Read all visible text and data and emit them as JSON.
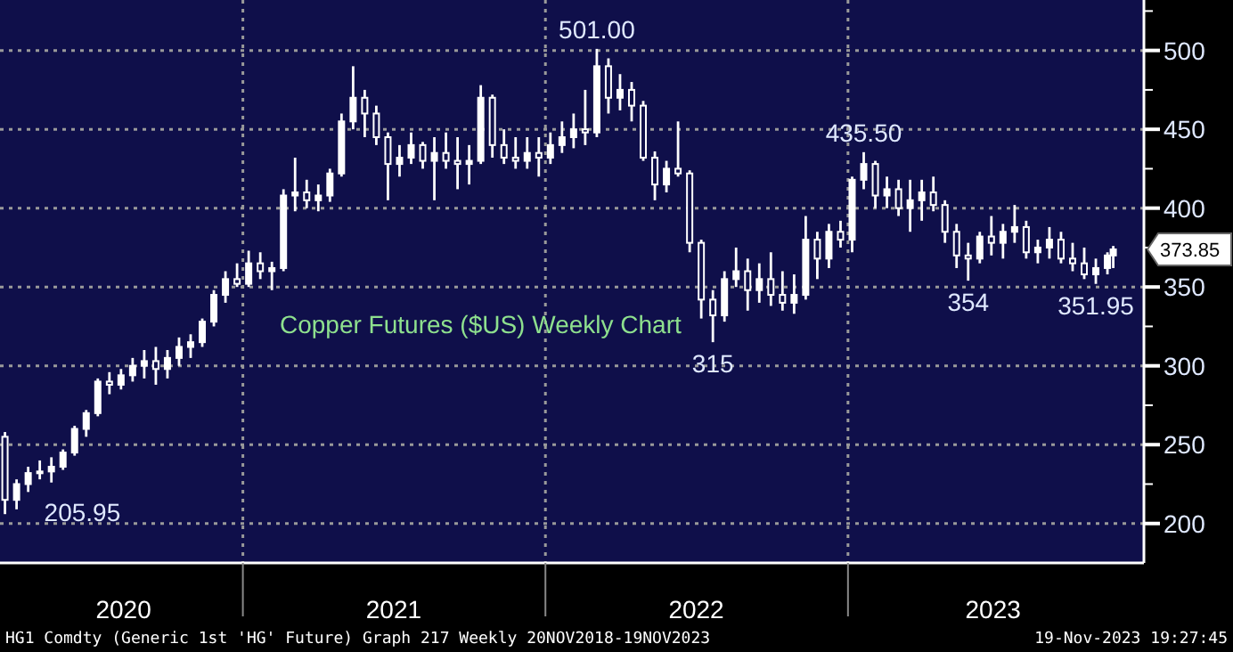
{
  "chart_data": {
    "type": "candlestick",
    "title": "Copper Futures ($US) Weekly Chart",
    "x": [
      "2020-03-20",
      "2020-04-03",
      "2020-04-17",
      "2020-05-01",
      "2020-05-15",
      "2020-05-29",
      "2020-06-12",
      "2020-06-26",
      "2020-07-10",
      "2020-07-24",
      "2020-08-07",
      "2020-08-21",
      "2020-09-04",
      "2020-09-18",
      "2020-10-02",
      "2020-10-16",
      "2020-10-30",
      "2020-11-13",
      "2020-11-27",
      "2020-12-11",
      "2020-12-25",
      "2021-01-08",
      "2021-01-22",
      "2021-02-05",
      "2021-02-19",
      "2021-03-05",
      "2021-03-19",
      "2021-04-02",
      "2021-04-16",
      "2021-04-30",
      "2021-05-14",
      "2021-05-28",
      "2021-06-11",
      "2021-06-25",
      "2021-07-09",
      "2021-07-23",
      "2021-08-06",
      "2021-08-20",
      "2021-09-03",
      "2021-09-17",
      "2021-10-01",
      "2021-10-15",
      "2021-10-29",
      "2021-11-12",
      "2021-11-26",
      "2021-12-10",
      "2021-12-24",
      "2022-01-07",
      "2022-01-21",
      "2022-02-04",
      "2022-02-18",
      "2022-03-04",
      "2022-03-18",
      "2022-04-01",
      "2022-04-15",
      "2022-04-29",
      "2022-05-13",
      "2022-05-27",
      "2022-06-10",
      "2022-06-24",
      "2022-07-08",
      "2022-07-22",
      "2022-08-05",
      "2022-08-19",
      "2022-09-02",
      "2022-09-16",
      "2022-09-30",
      "2022-10-14",
      "2022-10-28",
      "2022-11-11",
      "2022-11-25",
      "2022-12-09",
      "2022-12-23",
      "2023-01-06",
      "2023-01-20",
      "2023-02-03",
      "2023-02-17",
      "2023-03-03",
      "2023-03-17",
      "2023-03-31",
      "2023-04-14",
      "2023-04-28",
      "2023-05-12",
      "2023-05-26",
      "2023-06-09",
      "2023-06-23",
      "2023-07-07",
      "2023-07-21",
      "2023-08-04",
      "2023-08-18",
      "2023-09-01",
      "2023-09-15",
      "2023-09-29",
      "2023-10-13",
      "2023-10-27",
      "2023-11-10",
      "2023-11-17"
    ],
    "series": [
      {
        "color": "#ffffff",
        "ohlc": [
          [
            255,
            258,
            205.95,
            215
          ],
          [
            215,
            228,
            209,
            225
          ],
          [
            225,
            236,
            220,
            232
          ],
          [
            232,
            240,
            228,
            233
          ],
          [
            233,
            242,
            226,
            236
          ],
          [
            236,
            247,
            234,
            245
          ],
          [
            245,
            262,
            243,
            260
          ],
          [
            260,
            272,
            255,
            270
          ],
          [
            270,
            292,
            268,
            290
          ],
          [
            290,
            296,
            282,
            288
          ],
          [
            288,
            298,
            285,
            294
          ],
          [
            294,
            305,
            290,
            300
          ],
          [
            300,
            310,
            292,
            303
          ],
          [
            303,
            312,
            288,
            298
          ],
          [
            298,
            310,
            292,
            305
          ],
          [
            305,
            318,
            300,
            312
          ],
          [
            312,
            320,
            305,
            315
          ],
          [
            315,
            330,
            312,
            328
          ],
          [
            328,
            348,
            325,
            345
          ],
          [
            345,
            360,
            340,
            355
          ],
          [
            355,
            365,
            350,
            352
          ],
          [
            352,
            373,
            350,
            365
          ],
          [
            365,
            372,
            355,
            360
          ],
          [
            360,
            366,
            348,
            362
          ],
          [
            362,
            412,
            360,
            408
          ],
          [
            408,
            432,
            398,
            410
          ],
          [
            410,
            418,
            400,
            405
          ],
          [
            405,
            415,
            398,
            408
          ],
          [
            408,
            425,
            404,
            422
          ],
          [
            422,
            460,
            420,
            455
          ],
          [
            455,
            490,
            450,
            470
          ],
          [
            470,
            475,
            445,
            460
          ],
          [
            460,
            465,
            440,
            445
          ],
          [
            445,
            448,
            405,
            428
          ],
          [
            428,
            440,
            420,
            432
          ],
          [
            432,
            448,
            428,
            440
          ],
          [
            440,
            442,
            425,
            430
          ],
          [
            430,
            445,
            405,
            435
          ],
          [
            435,
            448,
            425,
            430
          ],
          [
            430,
            445,
            412,
            428
          ],
          [
            428,
            440,
            415,
            430
          ],
          [
            430,
            478,
            428,
            470
          ],
          [
            470,
            472,
            432,
            440
          ],
          [
            440,
            450,
            428,
            432
          ],
          [
            432,
            445,
            425,
            430
          ],
          [
            430,
            445,
            425,
            435
          ],
          [
            435,
            445,
            420,
            432
          ],
          [
            432,
            448,
            428,
            440
          ],
          [
            440,
            455,
            435,
            445
          ],
          [
            445,
            460,
            438,
            450
          ],
          [
            450,
            475,
            440,
            448
          ],
          [
            448,
            501,
            445,
            490
          ],
          [
            490,
            495,
            460,
            470
          ],
          [
            470,
            485,
            462,
            475
          ],
          [
            475,
            480,
            455,
            465
          ],
          [
            465,
            468,
            430,
            432
          ],
          [
            432,
            436,
            405,
            415
          ],
          [
            415,
            430,
            410,
            425
          ],
          [
            425,
            455,
            420,
            422
          ],
          [
            422,
            424,
            372,
            378
          ],
          [
            378,
            380,
            330,
            342
          ],
          [
            342,
            348,
            315,
            332
          ],
          [
            332,
            360,
            328,
            355
          ],
          [
            355,
            375,
            350,
            360
          ],
          [
            360,
            368,
            335,
            348
          ],
          [
            348,
            365,
            340,
            355
          ],
          [
            355,
            372,
            338,
            345
          ],
          [
            345,
            360,
            335,
            340
          ],
          [
            340,
            358,
            333,
            345
          ],
          [
            345,
            395,
            342,
            380
          ],
          [
            380,
            385,
            355,
            368
          ],
          [
            368,
            390,
            362,
            385
          ],
          [
            385,
            392,
            375,
            380
          ],
          [
            380,
            420,
            372,
            418
          ],
          [
            418,
            435.5,
            412,
            428
          ],
          [
            428,
            430,
            400,
            408
          ],
          [
            408,
            420,
            400,
            412
          ],
          [
            412,
            418,
            395,
            400
          ],
          [
            400,
            418,
            385,
            405
          ],
          [
            405,
            418,
            392,
            410
          ],
          [
            410,
            420,
            398,
            402
          ],
          [
            402,
            405,
            378,
            385
          ],
          [
            385,
            390,
            362,
            370
          ],
          [
            370,
            378,
            354,
            368
          ],
          [
            368,
            385,
            365,
            382
          ],
          [
            382,
            395,
            370,
            378
          ],
          [
            378,
            390,
            368,
            385
          ],
          [
            385,
            402,
            378,
            388
          ],
          [
            388,
            392,
            368,
            372
          ],
          [
            372,
            380,
            365,
            375
          ],
          [
            375,
            388,
            368,
            380
          ],
          [
            380,
            385,
            365,
            368
          ],
          [
            368,
            378,
            360,
            365
          ],
          [
            365,
            375,
            355,
            358
          ],
          [
            358,
            368,
            351.95,
            362
          ],
          [
            362,
            372,
            358,
            370
          ],
          [
            370,
            376,
            362,
            373.85
          ]
        ]
      }
    ],
    "xlim": [
      "2020-03-14",
      "2023-12-24"
    ],
    "xticks": [
      {
        "value": "2020-08-10",
        "label": "2020"
      },
      {
        "value": "2021-01-01",
        "label": null
      },
      {
        "value": "2021-07-02",
        "label": "2021"
      },
      {
        "value": "2022-01-01",
        "label": null
      },
      {
        "value": "2022-07-02",
        "label": "2022"
      },
      {
        "value": "2023-01-01",
        "label": null
      },
      {
        "value": "2023-06-25",
        "label": "2023"
      }
    ],
    "ylim": [
      175,
      532
    ],
    "yticks": [
      200,
      {
        "value": 225,
        "label": null
      },
      250,
      {
        "value": 275,
        "label": null
      },
      300,
      {
        "value": 325,
        "label": null
      },
      350,
      {
        "value": 375,
        "label": null
      },
      400,
      {
        "value": 425,
        "label": null
      },
      450,
      {
        "value": 475,
        "label": null
      },
      500,
      {
        "value": 525,
        "label": null
      }
    ],
    "grid": true,
    "annotations": [
      {
        "text": "205.95",
        "x": "2020-03-20",
        "y": 205.95
      },
      {
        "text": "501.00",
        "x": "2022-03-04",
        "y": 501
      },
      {
        "text": "315",
        "x": "2022-07-22",
        "y": 315
      },
      {
        "text": "435.50",
        "x": "2023-01-20",
        "y": 435.5
      },
      {
        "text": "354",
        "x": "2023-05-26",
        "y": 354
      },
      {
        "text": "351.95",
        "x": "2023-10-27",
        "y": 351.95
      },
      {
        "text": "373.85",
        "x": "2023-11-17",
        "y": 373.85
      },
      "HG1 Comdty (Generic 1st 'HG' Future) Graph 217  Weekly 20NOV2018-19NOV2023",
      "19-Nov-2023 19:27:45"
    ]
  }
}
